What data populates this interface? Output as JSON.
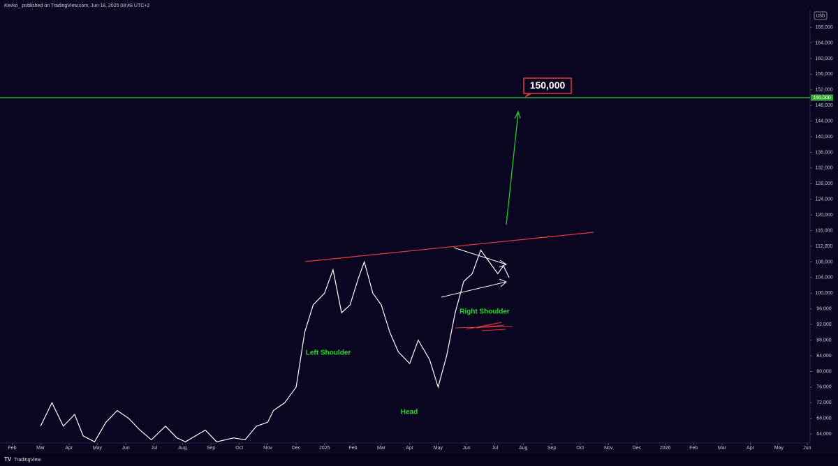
{
  "header": "Kevko_ published on TradingView.com, Jun 18, 2025 08:48 UTC+2",
  "currency": "USD",
  "footer": "TradingView",
  "chart_data": {
    "type": "line",
    "color": "#ffffff",
    "x": [
      1.0,
      1.4,
      1.8,
      2.2,
      2.5,
      2.9,
      3.3,
      3.7,
      4.1,
      4.5,
      4.9,
      5.4,
      5.8,
      6.1,
      6.8,
      7.2,
      7.8,
      8.2,
      8.6,
      9.0,
      9.2,
      9.6,
      10.0,
      10.3,
      10.6,
      11.0,
      11.3,
      11.6,
      11.9,
      12.2,
      12.4,
      12.7,
      13.0,
      13.3,
      13.6,
      14.0,
      14.3,
      14.7,
      15.0,
      15.3,
      15.6,
      15.9,
      16.2,
      16.5,
      16.8,
      17.1,
      17.3,
      17.5
    ],
    "values": [
      66000,
      72000,
      66000,
      69000,
      63500,
      62000,
      67000,
      70000,
      68000,
      65000,
      62500,
      66000,
      63000,
      62000,
      65000,
      62000,
      63000,
      62500,
      66000,
      67000,
      70000,
      72000,
      76000,
      90000,
      97000,
      100000,
      106000,
      95000,
      97000,
      104000,
      108000,
      100000,
      97000,
      90000,
      85000,
      82000,
      88000,
      83000,
      76000,
      84000,
      95000,
      103000,
      105000,
      111000,
      108000,
      105000,
      107000,
      104000
    ],
    "xlim": [
      -0.43,
      28.1
    ],
    "xticks": [
      {
        "value": 0,
        "label": "Feb"
      },
      {
        "value": 1,
        "label": "Mar"
      },
      {
        "value": 2,
        "label": "Apr"
      },
      {
        "value": 3,
        "label": "May"
      },
      {
        "value": 4,
        "label": "Jun"
      },
      {
        "value": 5,
        "label": "Jul"
      },
      {
        "value": 6,
        "label": "Aug"
      },
      {
        "value": 7,
        "label": "Sep"
      },
      {
        "value": 8,
        "label": "Oct"
      },
      {
        "value": 9,
        "label": "Nov"
      },
      {
        "value": 10,
        "label": "Dec"
      },
      {
        "value": 11,
        "label": "2025"
      },
      {
        "value": 12,
        "label": "Feb"
      },
      {
        "value": 13,
        "label": "Mar"
      },
      {
        "value": 14,
        "label": "Apr"
      },
      {
        "value": 15,
        "label": "May"
      },
      {
        "value": 16,
        "label": "Jun"
      },
      {
        "value": 17,
        "label": "Jul"
      },
      {
        "value": 18,
        "label": "Aug"
      },
      {
        "value": 19,
        "label": "Sep"
      },
      {
        "value": 20,
        "label": "Oct"
      },
      {
        "value": 21,
        "label": "Nov"
      },
      {
        "value": 22,
        "label": "Dec"
      },
      {
        "value": 23,
        "label": "2026"
      },
      {
        "value": 24,
        "label": "Feb"
      },
      {
        "value": 25,
        "label": "Mar"
      },
      {
        "value": 26,
        "label": "Apr"
      },
      {
        "value": 27,
        "label": "May"
      },
      {
        "value": 28,
        "label": "Jun"
      }
    ],
    "ylim": [
      61700,
      171400
    ],
    "yticks": [
      {
        "value": 64000,
        "label": "64,000"
      },
      {
        "value": 68000,
        "label": "68,000"
      },
      {
        "value": 72000,
        "label": "72,000"
      },
      {
        "value": 76000,
        "label": "76,000"
      },
      {
        "value": 80000,
        "label": "80,000"
      },
      {
        "value": 84000,
        "label": "84,000"
      },
      {
        "value": 88000,
        "label": "88,000"
      },
      {
        "value": 92000,
        "label": "92,000"
      },
      {
        "value": 96000,
        "label": "96,000"
      },
      {
        "value": 100000,
        "label": "100,000"
      },
      {
        "value": 104000,
        "label": "104,000"
      },
      {
        "value": 108000,
        "label": "108,000"
      },
      {
        "value": 112000,
        "label": "112,000"
      },
      {
        "value": 116000,
        "label": "116,000"
      },
      {
        "value": 120000,
        "label": "120,000"
      },
      {
        "value": 124000,
        "label": "124,000"
      },
      {
        "value": 128000,
        "label": "128,000"
      },
      {
        "value": 132000,
        "label": "132,000"
      },
      {
        "value": 136000,
        "label": "136,000"
      },
      {
        "value": 140000,
        "label": "140,000"
      },
      {
        "value": 144000,
        "label": "144,000"
      },
      {
        "value": 148000,
        "label": "148,000"
      },
      {
        "value": 152000,
        "label": "152,000"
      },
      {
        "value": 156000,
        "label": "156,000"
      },
      {
        "value": 160000,
        "label": "160,000"
      },
      {
        "value": 164000,
        "label": "164,000"
      },
      {
        "value": 168000,
        "label": "168,000"
      }
    ],
    "hline": {
      "value": 150000,
      "label": "150,000"
    },
    "annotations": [
      "Left Shoulder",
      "Head",
      "Right Shoulder"
    ]
  }
}
